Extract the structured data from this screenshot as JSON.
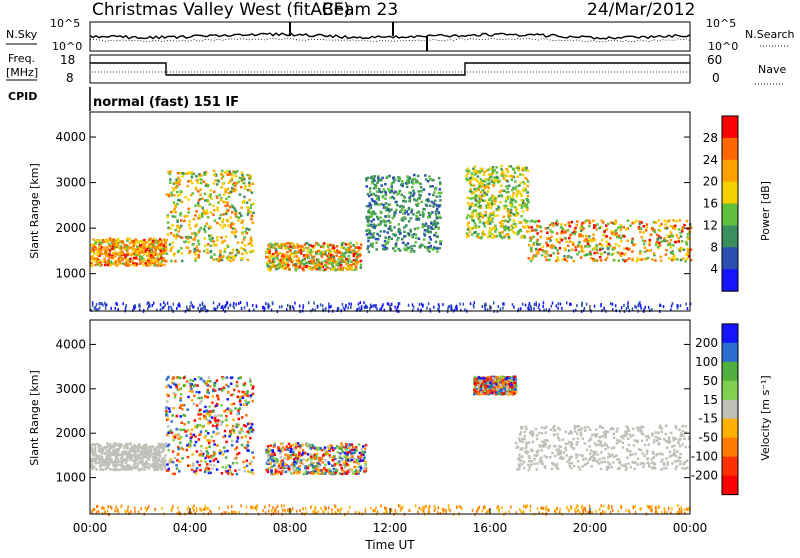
{
  "header": {
    "station": "Christmas Valley West (fitACF)",
    "beam": "Beam 23",
    "date": "24/Mar/2012"
  },
  "top_panels": {
    "nsky_label": "N.Sky",
    "nsky_tick_hi": "10^5",
    "nsky_tick_lo": "10^0",
    "nsearch_label": "N.Search",
    "nsearch_tick_hi": "10^5",
    "nsearch_tick_lo": "10^0",
    "freq_label_1": "Freq.",
    "freq_label_2": "[MHz]",
    "freq_tick_hi": "18",
    "freq_tick_lo": "8",
    "nave_label": "Nave",
    "nave_tick_hi": "60",
    "nave_tick_lo": "0",
    "cpid_label": "CPID",
    "cpid_text": "normal (fast) 151 IF"
  },
  "chart_data": [
    {
      "type": "heatmap",
      "panel": "power",
      "ylabel": "Slant Range [km]",
      "xlabel": "Time UT",
      "xticks": [
        "00:00",
        "04:00",
        "08:00",
        "12:00",
        "16:00",
        "20:00",
        "00:00"
      ],
      "yticks": [
        1000,
        2000,
        3000,
        4000
      ],
      "ylim": [
        180,
        4550
      ],
      "xlim_hours": [
        0,
        24
      ],
      "colorbar": {
        "label": "Power [dB]",
        "ticks": [
          "28",
          "24",
          "20",
          "16",
          "12",
          "8",
          "4"
        ],
        "colors": [
          "#ff0000",
          "#ff6600",
          "#ffa000",
          "#f5d000",
          "#5fbf3f",
          "#3a8f5f",
          "#2a4fb0",
          "#1414ff"
        ]
      },
      "features": [
        {
          "name": "main band early",
          "t": [
            0,
            3
          ],
          "range_km": [
            1200,
            1800
          ],
          "power_db": [
            12,
            28
          ]
        },
        {
          "name": "descending arc",
          "t": [
            3,
            6.5
          ],
          "range_km": [
            1300,
            3300
          ],
          "power_db": [
            8,
            24
          ]
        },
        {
          "name": "mid band",
          "t": [
            7,
            10.8
          ],
          "range_km": [
            1100,
            1700
          ],
          "power_db": [
            8,
            28
          ]
        },
        {
          "name": "noon arc",
          "t": [
            11,
            14
          ],
          "range_km": [
            1500,
            3200
          ],
          "power_db": [
            4,
            12
          ]
        },
        {
          "name": "evening arc",
          "t": [
            15,
            17.5
          ],
          "range_km": [
            1800,
            3400
          ],
          "power_db": [
            8,
            20
          ]
        },
        {
          "name": "main band late",
          "t": [
            17.5,
            24
          ],
          "range_km": [
            1300,
            2200
          ],
          "power_db": [
            8,
            28
          ]
        }
      ]
    },
    {
      "type": "heatmap",
      "panel": "velocity",
      "ylabel": "Slant Range [km]",
      "xlabel": "Time UT",
      "xticks": [
        "00:00",
        "04:00",
        "08:00",
        "12:00",
        "16:00",
        "20:00",
        "00:00"
      ],
      "yticks": [
        1000,
        2000,
        3000,
        4000
      ],
      "ylim": [
        180,
        4550
      ],
      "xlim_hours": [
        0,
        24
      ],
      "colorbar": {
        "label": "Velocity [m s⁻¹]",
        "ticks": [
          "200",
          "100",
          "50",
          "15",
          "-15",
          "-50",
          "-100",
          "-200"
        ],
        "colors": [
          "#1414ff",
          "#2a6fd0",
          "#4faf3f",
          "#7fd050",
          "#c0c0b8",
          "#ffb000",
          "#ff7a00",
          "#ff3000",
          "#ff0000"
        ]
      },
      "features": [
        {
          "name": "ground scatter early",
          "t": [
            0,
            3
          ],
          "range_km": [
            1200,
            1800
          ],
          "velocity_ms": [
            -15,
            15
          ]
        },
        {
          "name": "negative-to-positive arc",
          "t": [
            3,
            6.5
          ],
          "range_km": [
            1100,
            3300
          ],
          "velocity_ms": [
            -200,
            200
          ]
        },
        {
          "name": "mixed mid band",
          "t": [
            7,
            11
          ],
          "range_km": [
            1100,
            1800
          ],
          "velocity_ms": [
            -50,
            50
          ]
        },
        {
          "name": "evening red patch",
          "t": [
            15.3,
            17
          ],
          "range_km": [
            2900,
            3300
          ],
          "velocity_ms": [
            -200,
            -100
          ]
        },
        {
          "name": "ground scatter late",
          "t": [
            17,
            24
          ],
          "range_km": [
            1200,
            2200
          ],
          "velocity_ms": [
            -15,
            15
          ]
        }
      ]
    }
  ]
}
